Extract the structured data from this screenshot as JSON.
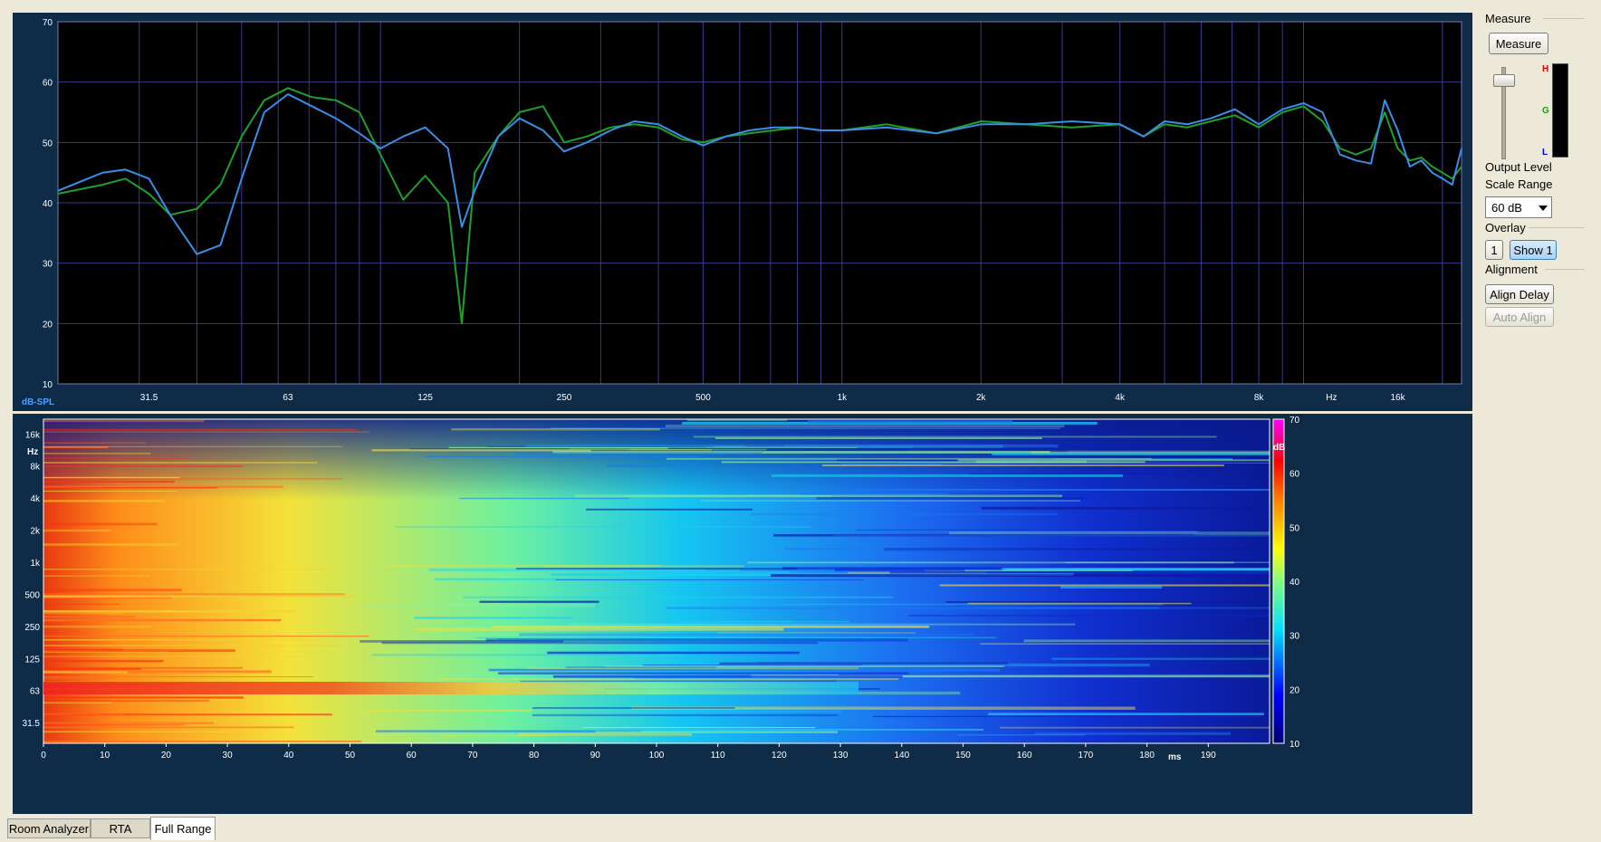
{
  "top_graph": {
    "y_ticks": [
      "70",
      "60",
      "50",
      "40",
      "30",
      "20",
      "10"
    ],
    "y_unit": "dB-SPL",
    "x_ticks": [
      "31.5",
      "63",
      "125",
      "250",
      "500",
      "1k",
      "2k",
      "4k",
      "8k",
      "16k"
    ],
    "x_unit": "Hz",
    "colors": {
      "background": "#000000",
      "grid": "#3a3a8c",
      "trace1": "#3a8ee8",
      "trace2": "#1fa02a",
      "axis_text": "#ffffff",
      "unit_text": "#4aa3ff"
    }
  },
  "spectrogram": {
    "y_ticks": [
      "16k",
      "8k",
      "4k",
      "2k",
      "1k",
      "500",
      "250",
      "125",
      "63",
      "31.5"
    ],
    "y_unit": "Hz",
    "x_ticks": [
      "0",
      "10",
      "20",
      "30",
      "40",
      "50",
      "60",
      "70",
      "80",
      "90",
      "100",
      "110",
      "120",
      "130",
      "140",
      "150",
      "160",
      "170",
      "180",
      "190"
    ],
    "x_unit": "ms",
    "scale_ticks": [
      "70",
      "60",
      "50",
      "40",
      "30",
      "20",
      "10"
    ],
    "scale_unit": "dB"
  },
  "chart_data": {
    "type": "line",
    "xscale": "log",
    "xlabel": "Hz",
    "ylabel": "dB-SPL",
    "ylim": [
      10,
      70
    ],
    "xlim": [
      20,
      22000
    ],
    "series": [
      {
        "x": [
          20,
          25,
          28,
          31.5,
          35,
          40,
          45,
          50,
          56,
          63,
          71,
          80,
          90,
          100,
          112,
          125,
          140,
          150,
          160,
          180,
          200,
          225,
          250,
          280,
          315,
          355,
          400,
          450,
          500,
          560,
          630,
          710,
          800,
          900,
          1000,
          1250,
          1600,
          2000,
          2500,
          3150,
          4000,
          4500,
          5000,
          5600,
          6300,
          7100,
          8000,
          9000,
          10000,
          11000,
          12000,
          13000,
          14000,
          15000,
          16000,
          17000,
          18000,
          19000,
          20000,
          21000,
          22000
        ],
        "values": [
          42,
          45,
          45.5,
          44,
          38,
          31.5,
          33,
          44,
          55,
          58,
          56,
          54,
          51.5,
          49,
          51,
          52.5,
          49,
          36,
          42,
          51,
          54,
          52,
          48.5,
          50,
          52,
          53.5,
          53,
          51,
          49.5,
          51,
          52,
          52.5,
          52.5,
          52,
          52,
          52.5,
          51.5,
          53,
          53,
          53.5,
          53,
          51,
          53.5,
          53,
          54,
          55.5,
          53,
          55.5,
          56.5,
          55,
          48,
          47,
          46.5,
          57,
          52,
          46,
          47,
          45,
          44,
          43,
          49
        ]
      },
      {
        "x": [
          20,
          25,
          28,
          31.5,
          35,
          40,
          45,
          50,
          56,
          63,
          71,
          80,
          90,
          100,
          112,
          125,
          140,
          150,
          160,
          180,
          200,
          225,
          250,
          280,
          315,
          355,
          400,
          450,
          500,
          560,
          630,
          710,
          800,
          900,
          1000,
          1250,
          1600,
          2000,
          2500,
          3150,
          4000,
          4500,
          5000,
          5600,
          6300,
          7100,
          8000,
          9000,
          10000,
          11000,
          12000,
          13000,
          14000,
          15000,
          16000,
          17000,
          18000,
          19000,
          20000,
          21000,
          22000
        ],
        "values": [
          41.5,
          43,
          44,
          41.5,
          38,
          39,
          43,
          51,
          57,
          59,
          57.5,
          57,
          55,
          48,
          40.5,
          44.5,
          40,
          20,
          45,
          51,
          55,
          56,
          50,
          51,
          52.5,
          53,
          52.5,
          50.5,
          50,
          51,
          51.5,
          52,
          52.5,
          52,
          52,
          53,
          51.5,
          53.5,
          53,
          52.5,
          53,
          51,
          53,
          52.5,
          53.5,
          54.5,
          52.5,
          55,
          56,
          53.5,
          49,
          48,
          49,
          55,
          49,
          47,
          47.5,
          46,
          45,
          44,
          46
        ]
      }
    ]
  },
  "side": {
    "measure_group": "Measure",
    "measure_button": "Measure",
    "meter_labels": [
      "H",
      "G",
      "L"
    ],
    "output_level": "Output Level",
    "scale_range_label": "Scale Range",
    "scale_range_value": "60 dB",
    "overlay_label": "Overlay",
    "overlay_1": "1",
    "overlay_show": "Show 1",
    "alignment_label": "Alignment",
    "align_delay": "Align Delay",
    "auto_align": "Auto Align"
  },
  "tabs": [
    "Room Analyzer",
    "RTA",
    "Full Range"
  ]
}
